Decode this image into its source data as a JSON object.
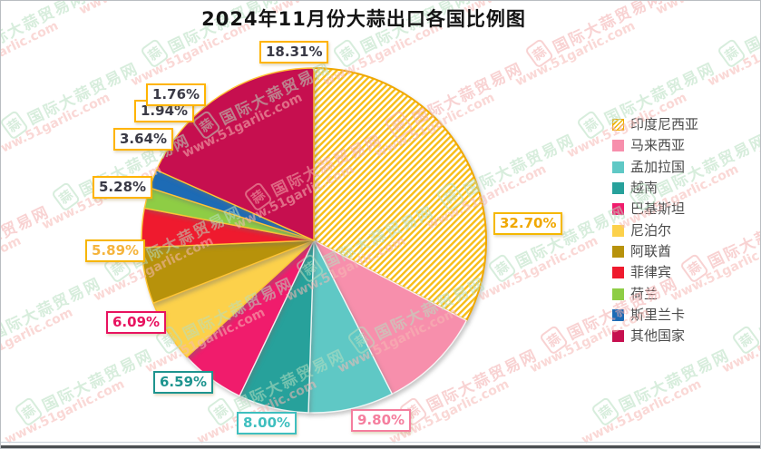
{
  "title": "2024年11月份大蒜出口各国比例图",
  "watermark": {
    "site_name": "国际大蒜贸易网",
    "site_url": "www.51garlic.com",
    "logo_char": "蒜",
    "green_color": "#b7dfc1",
    "red_color": "#f4afaf",
    "url_color": "#f6bab5"
  },
  "colors": {
    "label_default_border": "#ffb400",
    "label_default_text": "#3a3a46",
    "legend_text": "#4a4a4a",
    "hatch_line": "#f7bd17",
    "pie_outline_gold": "#f0a800"
  },
  "chart_data": {
    "type": "pie",
    "title": "2024年11月份大蒜出口各国比例图",
    "direction": "clockwise",
    "start_angle_deg": 0,
    "legend_position": "right",
    "total_pct": 100.0,
    "categories": [
      "印度尼西亚",
      "马来西亚",
      "孟加拉国",
      "越南",
      "巴基斯坦",
      "尼泊尔",
      "阿联酋",
      "菲律宾",
      "荷兰",
      "斯里兰卡",
      "其他国家"
    ],
    "values": [
      32.7,
      9.8,
      8.0,
      6.59,
      6.09,
      5.89,
      5.28,
      3.64,
      1.94,
      1.76,
      18.31
    ],
    "slices": [
      {
        "label": "印度尼西亚",
        "value": 32.7,
        "pct_label": "32.70%",
        "color": "#f7bd17",
        "hatch": true,
        "stroke": "#f0a800",
        "label_border": "#f5b800",
        "label_text": "#f0a800"
      },
      {
        "label": "马来西亚",
        "value": 9.8,
        "pct_label": "9.80%",
        "color": "#f78fac",
        "hatch": false,
        "stroke": "rgba(255,255,255,0.85)",
        "label_border": "#f57e9e",
        "label_text": "#f57e9e"
      },
      {
        "label": "孟加拉国",
        "value": 8.0,
        "pct_label": "8.00%",
        "color": "#5fc8c5",
        "hatch": false,
        "stroke": "rgba(255,255,255,0.85)",
        "label_border": "#3fbfbf",
        "label_text": "#3fbfbf"
      },
      {
        "label": "越南",
        "value": 6.59,
        "pct_label": "6.59%",
        "color": "#27a19b",
        "hatch": false,
        "stroke": "rgba(255,255,255,0.85)",
        "label_border": "#1e948f",
        "label_text": "#1e948f"
      },
      {
        "label": "巴基斯坦",
        "value": 6.09,
        "pct_label": "6.09%",
        "color": "#f01c6c",
        "hatch": false,
        "stroke": "rgba(255,255,255,0.85)",
        "label_border": "#e8125f",
        "label_text": "#e8125f"
      },
      {
        "label": "尼泊尔",
        "value": 5.89,
        "pct_label": "5.89%",
        "color": "#fcd14b",
        "hatch": false,
        "stroke": "#ffc435",
        "label_border": "#f7b500",
        "label_text": "#f5b43c"
      },
      {
        "label": "阿联酋",
        "value": 5.28,
        "pct_label": "5.28%",
        "color": "#b7920b",
        "hatch": false,
        "stroke": "#ffc435",
        "label_border": "#ffb400",
        "label_text": "#3a3a46"
      },
      {
        "label": "菲律宾",
        "value": 3.64,
        "pct_label": "3.64%",
        "color": "#ef1a2e",
        "hatch": false,
        "stroke": "#ffc435",
        "label_border": "#ffb400",
        "label_text": "#3a3a46"
      },
      {
        "label": "荷兰",
        "value": 1.94,
        "pct_label": "1.94%",
        "color": "#8ecd45",
        "hatch": false,
        "stroke": "#ffc435",
        "label_border": "#ffb400",
        "label_text": "#3a3a46"
      },
      {
        "label": "斯里兰卡",
        "value": 1.76,
        "pct_label": "1.76%",
        "color": "#1d6bb5",
        "hatch": false,
        "stroke": "#ffc435",
        "label_border": "#ffb400",
        "label_text": "#3a3a46"
      },
      {
        "label": "其他国家",
        "value": 18.31,
        "pct_label": "18.31%",
        "color": "#c60f4f",
        "hatch": false,
        "stroke": "#ffc435",
        "label_border": "#ffb400",
        "label_text": "#3a3a46"
      }
    ]
  }
}
